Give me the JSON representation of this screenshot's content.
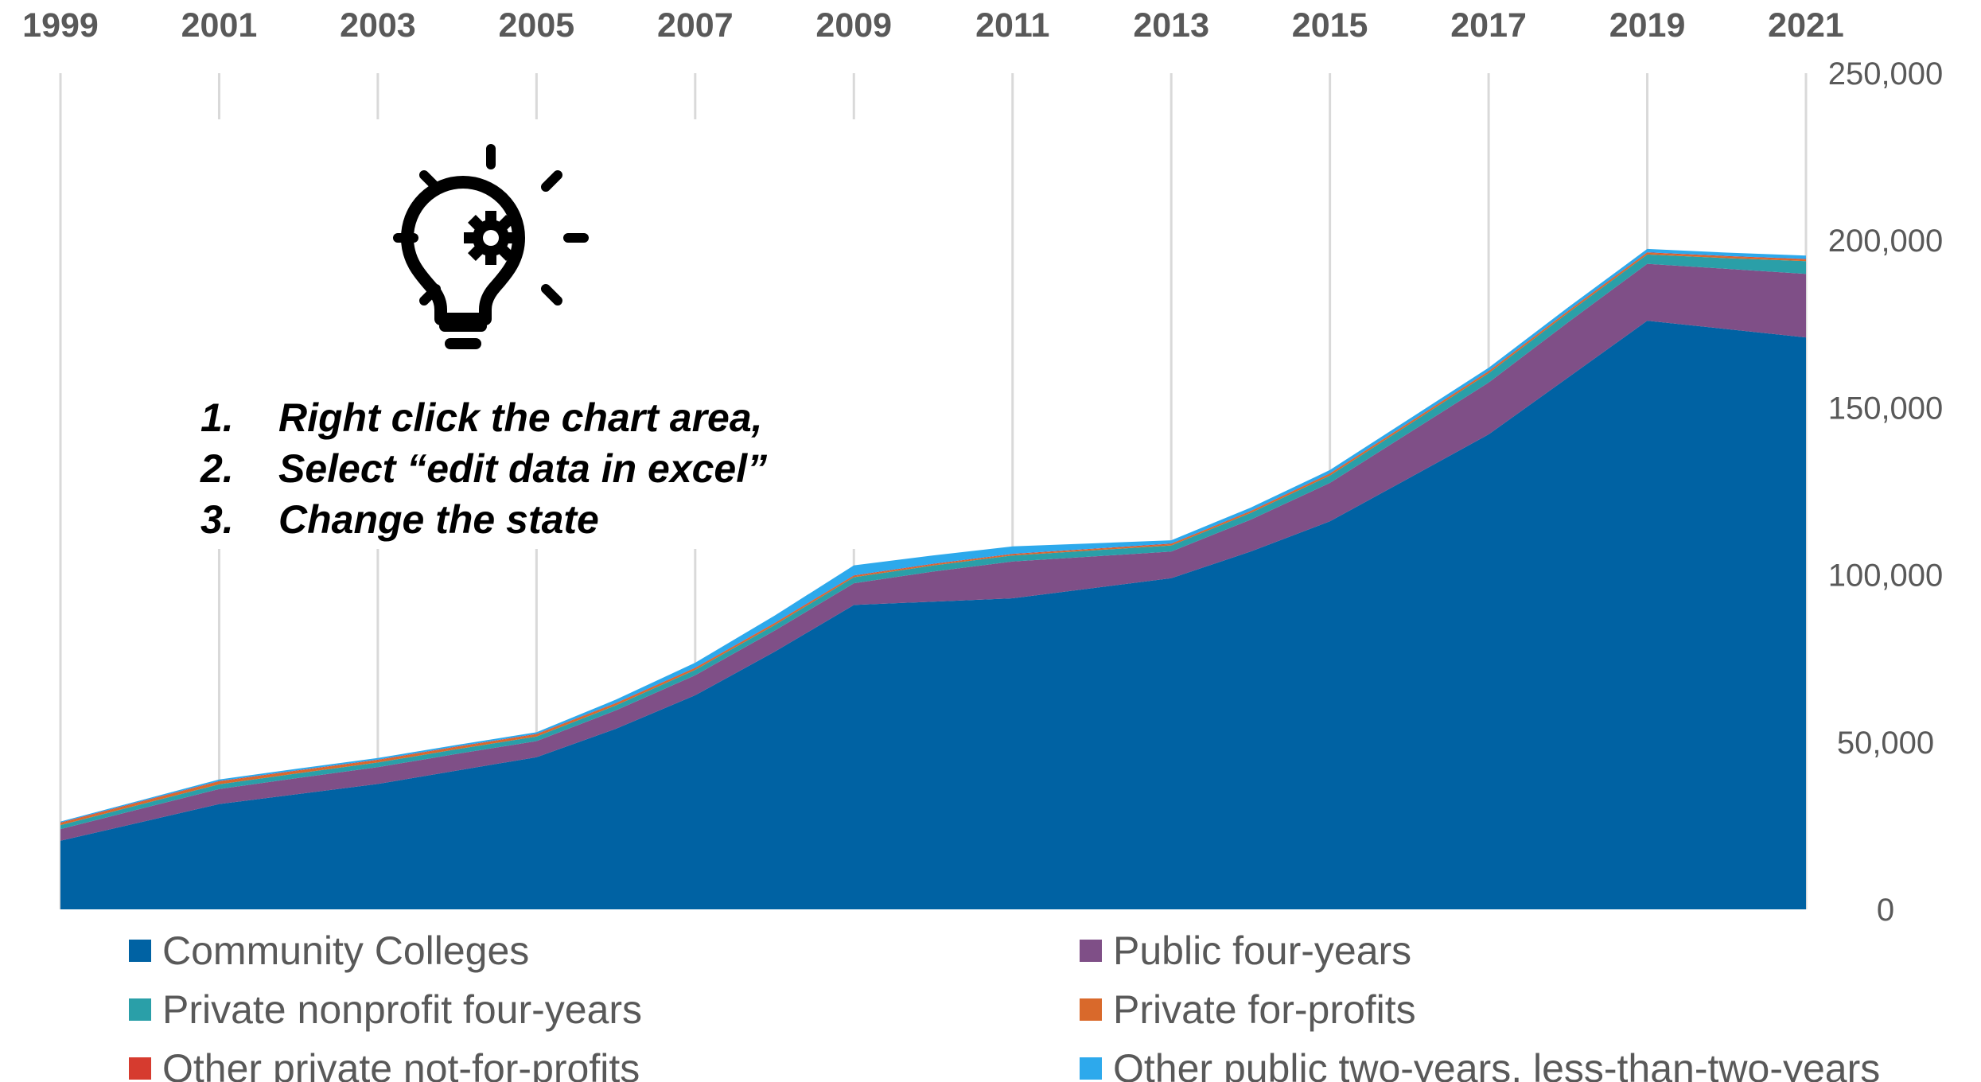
{
  "chart_data": {
    "type": "area",
    "stacked": true,
    "x": [
      1999,
      2000,
      2001,
      2002,
      2003,
      2004,
      2005,
      2006,
      2007,
      2008,
      2009,
      2010,
      2011,
      2012,
      2013,
      2014,
      2015,
      2016,
      2017,
      2018,
      2019,
      2020,
      2021
    ],
    "x_tick_labels": [
      "1999",
      "2001",
      "2003",
      "2005",
      "2007",
      "2009",
      "2011",
      "2013",
      "2015",
      "2017",
      "2019",
      "2021"
    ],
    "y_tick_labels": [
      "250,000",
      "200,000",
      "150,000",
      "100,000",
      "50,000",
      "0"
    ],
    "ylim": [
      0,
      250000
    ],
    "y_axis_position": "right",
    "x_axis_position": "top",
    "grid": "vertical",
    "legend_position": "bottom",
    "series": [
      {
        "name": "Community Colleges",
        "color": "#0062a3",
        "values": [
          20500,
          26000,
          31500,
          34500,
          37500,
          41500,
          45500,
          54000,
          64000,
          77000,
          91000,
          92000,
          93000,
          96000,
          99000,
          107000,
          116000,
          129000,
          142000,
          159000,
          176000,
          173500,
          171000
        ]
      },
      {
        "name": "Public four-years",
        "color": "#7f4f87",
        "values": [
          3500,
          4000,
          4500,
          4800,
          5000,
          5000,
          4800,
          5500,
          6000,
          6300,
          6500,
          9000,
          11000,
          9500,
          8000,
          9500,
          11500,
          13500,
          15500,
          16500,
          17000,
          18000,
          19000
        ]
      },
      {
        "name": "Private nonprofit four-years",
        "color": "#2a9fa8",
        "values": [
          1200,
          1300,
          1400,
          1400,
          1400,
          1400,
          1400,
          1500,
          1600,
          1700,
          1800,
          1800,
          1800,
          1800,
          1800,
          2000,
          2200,
          2500,
          2800,
          2800,
          2800,
          3200,
          3800
        ]
      },
      {
        "name": "Private for-profits",
        "color": "#d9692b",
        "values": [
          600,
          700,
          800,
          750,
          700,
          650,
          600,
          550,
          500,
          450,
          400,
          380,
          360,
          380,
          400,
          450,
          500,
          500,
          500,
          500,
          500,
          500,
          500
        ]
      },
      {
        "name": "Other private not-for-profits",
        "color": "#d63b2f",
        "values": [
          150,
          150,
          150,
          150,
          150,
          150,
          150,
          150,
          150,
          150,
          150,
          150,
          150,
          150,
          150,
          150,
          150,
          150,
          150,
          150,
          150,
          150,
          150
        ]
      },
      {
        "name": "Other public two-years, less-than-two-years",
        "color": "#2da9ec",
        "values": [
          300,
          400,
          500,
          500,
          500,
          500,
          500,
          1000,
          1500,
          2200,
          3000,
          2500,
          2200,
          1600,
          1000,
          1000,
          1000,
          1000,
          1000,
          1000,
          1000,
          1000,
          1000
        ]
      }
    ]
  },
  "instructions": {
    "items": [
      {
        "num": "1.",
        "text": "Right click the chart area,"
      },
      {
        "num": "2.",
        "text": "Select “edit data in excel”"
      },
      {
        "num": "3.",
        "text": "Change the state"
      }
    ]
  },
  "icon": {
    "name": "lightbulb-gear-icon",
    "color": "#000000"
  },
  "colors": {
    "tick_text": "#595959",
    "grid": "#d9d9d9",
    "background": "#ffffff"
  }
}
